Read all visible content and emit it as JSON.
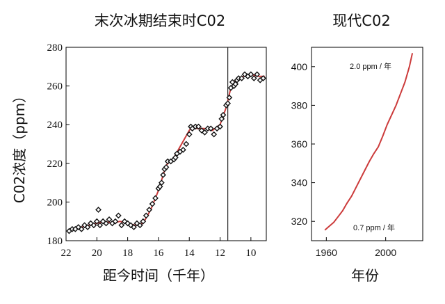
{
  "chart_data": [
    {
      "type": "scatter",
      "title": "末次冰期结束时C02",
      "xlabel": "距今时间（千年）",
      "ylabel": "C02浓度（ppm）",
      "xlim": [
        22,
        9
      ],
      "ylim": [
        180,
        280
      ],
      "x_reversed": true,
      "grid": false,
      "xticks": [
        22,
        20,
        18,
        16,
        14,
        12,
        10
      ],
      "yticks": [
        180,
        200,
        220,
        240,
        260,
        280
      ],
      "vline_x": 11.5,
      "line_color": "#cc3b3b",
      "marker_color": "#111111",
      "series": [
        {
          "kind": "points",
          "x": [
            21.8,
            21.6,
            21.4,
            21.2,
            21.0,
            20.8,
            20.6,
            20.4,
            20.2,
            20.0,
            19.9,
            19.8,
            19.6,
            19.4,
            19.2,
            19.0,
            18.8,
            18.6,
            18.4,
            18.2,
            18.0,
            17.8,
            17.6,
            17.4,
            17.2,
            17.0,
            16.8,
            16.6,
            16.4,
            16.2,
            16.0,
            15.9,
            15.8,
            15.7,
            15.6,
            15.5,
            15.4,
            15.2,
            15.0,
            14.9,
            14.8,
            14.6,
            14.4,
            14.2,
            14.0,
            13.9,
            13.8,
            13.6,
            13.4,
            13.2,
            13.0,
            12.8,
            12.6,
            12.4,
            12.2,
            12.0,
            11.9,
            11.8,
            11.6,
            11.5,
            11.4,
            11.3,
            11.2,
            11.1,
            11.0,
            10.9,
            10.8,
            10.6,
            10.4,
            10.2,
            10.0,
            9.8,
            9.6,
            9.4,
            9.2
          ],
          "y": [
            185,
            186,
            186,
            187,
            186,
            188,
            187,
            189,
            188,
            190,
            196,
            188,
            190,
            189,
            191,
            189,
            190,
            193,
            188,
            190,
            189,
            188,
            187,
            189,
            188,
            190,
            193,
            196,
            199,
            202,
            207,
            208,
            210,
            214,
            217,
            218,
            221,
            221,
            222,
            223,
            225,
            226,
            227,
            230,
            235,
            239,
            238,
            239,
            239,
            237,
            236,
            238,
            238,
            235,
            238,
            239,
            243,
            245,
            250,
            251,
            254,
            259,
            262,
            260,
            261,
            263,
            264,
            264,
            266,
            265,
            266,
            264,
            266,
            263,
            264
          ]
        },
        {
          "kind": "line",
          "x": [
            21.9,
            21.0,
            20.0,
            19.5,
            19.0,
            18.5,
            18.0,
            17.5,
            17.0,
            16.5,
            16.0,
            15.5,
            15.0,
            14.5,
            14.0,
            13.8,
            13.5,
            13.0,
            12.5,
            12.0,
            11.6,
            11.3,
            11.0,
            10.5,
            10.0,
            9.5,
            9.1
          ],
          "y": [
            185,
            187,
            189,
            190,
            189,
            190,
            189,
            188,
            189,
            196,
            206,
            219,
            223,
            230,
            237,
            239,
            238,
            238,
            237,
            240,
            249,
            259,
            263,
            265,
            266,
            265,
            265
          ]
        }
      ]
    },
    {
      "type": "line",
      "title": "现代C02",
      "xlabel": "年份",
      "ylabel": "",
      "xlim": [
        1950,
        2025
      ],
      "ylim": [
        310,
        410
      ],
      "grid": false,
      "xticks": [
        1960,
        2000
      ],
      "yticks": [
        320,
        340,
        360,
        380,
        400
      ],
      "line_color": "#cc3b3b",
      "annotations": [
        {
          "text": "2.0 ppm / 年"
        },
        {
          "text": "0.7 ppm / 年"
        }
      ],
      "series": [
        {
          "x": [
            1959,
            1962,
            1965,
            1968,
            1971,
            1974,
            1977,
            1980,
            1983,
            1986,
            1989,
            1992,
            1995,
            1998,
            2001,
            2004,
            2007,
            2010,
            2013,
            2016,
            2018
          ],
          "y": [
            315.5,
            317.5,
            319.5,
            322.5,
            325.5,
            329.5,
            333,
            337.5,
            342,
            346.5,
            351,
            355,
            358.5,
            364,
            370,
            375,
            380,
            386,
            392,
            400,
            407
          ]
        }
      ]
    }
  ]
}
